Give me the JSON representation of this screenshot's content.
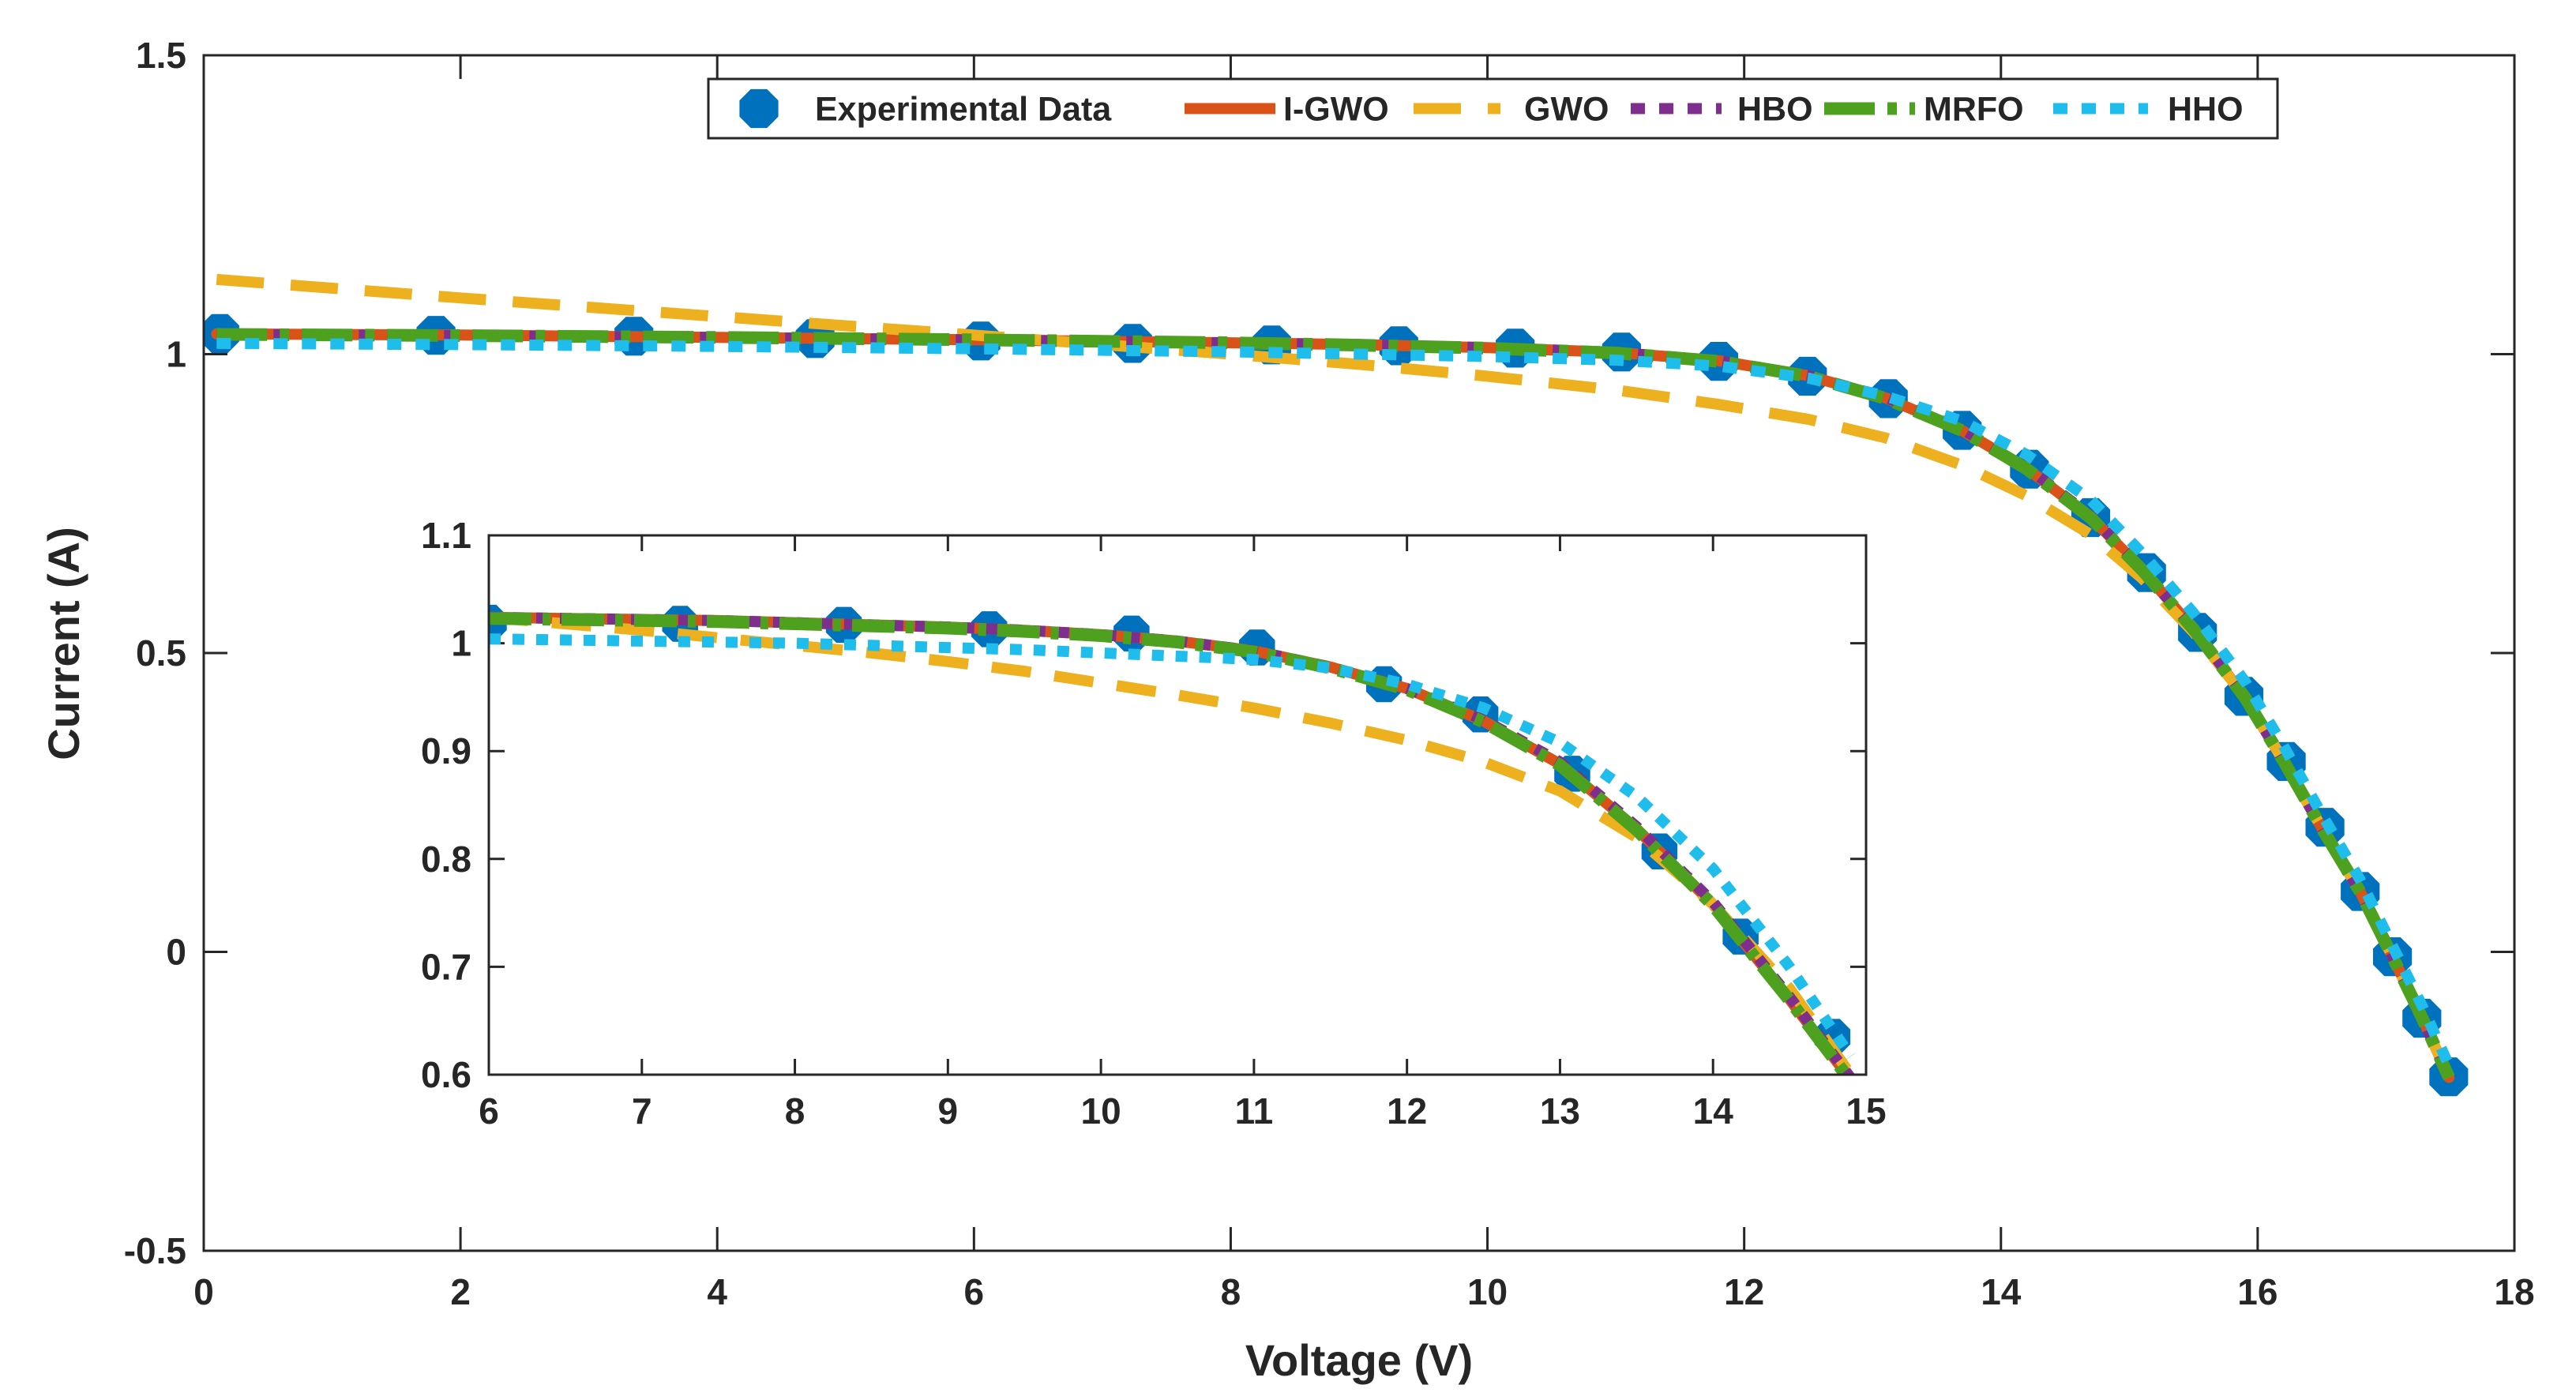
{
  "chart_data": {
    "type": "line",
    "xlabel": "Voltage (V)",
    "ylabel": "Current (A)",
    "xlim": [
      0,
      18
    ],
    "ylim": [
      -0.5,
      1.5
    ],
    "xticks": [
      0,
      2,
      4,
      6,
      8,
      10,
      12,
      14,
      16,
      18
    ],
    "yticks": [
      -0.5,
      0,
      0.5,
      1,
      1.5
    ],
    "xtick_labels": [
      "0",
      "2",
      "4",
      "6",
      "8",
      "10",
      "12",
      "14",
      "16",
      "18"
    ],
    "ytick_labels": [
      "-0.5",
      "0",
      "0.5",
      "1",
      "1.5"
    ],
    "grid": false,
    "legend_position": "top-right",
    "series": [
      {
        "name": "Experimental Data",
        "style": "marker",
        "color": "#0072BD",
        "x": [
          0.1248,
          1.8093,
          3.3511,
          4.7622,
          6.0538,
          7.2364,
          8.3189,
          9.3097,
          10.2163,
          11.0449,
          11.8018,
          12.4929,
          13.1231,
          13.6983,
          14.2221,
          14.6995,
          15.1346,
          15.5311,
          15.8929,
          16.2229,
          16.5241,
          16.7987,
          17.0499,
          17.2793,
          17.4885
        ],
        "y": [
          1.0345,
          1.0315,
          1.03,
          1.026,
          1.022,
          1.018,
          1.0155,
          1.014,
          1.01,
          1.0035,
          0.988,
          0.963,
          0.9255,
          0.8725,
          0.8075,
          0.7265,
          0.6345,
          0.5345,
          0.4275,
          0.3185,
          0.2085,
          0.101,
          -0.008,
          -0.111,
          -0.209
        ]
      },
      {
        "name": "I-GWO",
        "style": "solid",
        "color": "#D95319",
        "x": [
          0.1,
          2,
          4,
          6,
          8,
          9,
          10,
          11,
          11.8,
          12.5,
          13.1,
          13.7,
          14.2,
          14.7,
          15.1,
          15.5,
          15.9,
          16.2,
          16.5,
          16.8,
          17.05,
          17.28,
          17.49
        ],
        "y": [
          1.034,
          1.032,
          1.028,
          1.024,
          1.019,
          1.016,
          1.011,
          1.003,
          0.989,
          0.964,
          0.927,
          0.872,
          0.809,
          0.727,
          0.64,
          0.54,
          0.426,
          0.32,
          0.207,
          0.1,
          -0.008,
          -0.11,
          -0.21
        ]
      },
      {
        "name": "GWO",
        "style": "dashed",
        "color": "#EDB120",
        "x": [
          0.1,
          2,
          4,
          6,
          8,
          9,
          10,
          11,
          11.8,
          12.5,
          13.1,
          13.7,
          14.2,
          14.7,
          15.1,
          15.5,
          15.9,
          16.2,
          16.5,
          16.8,
          17.05,
          17.28,
          17.49
        ],
        "y": [
          1.125,
          1.094,
          1.063,
          1.032,
          1.0,
          0.983,
          0.963,
          0.94,
          0.916,
          0.891,
          0.86,
          0.814,
          0.763,
          0.698,
          0.625,
          0.535,
          0.427,
          0.32,
          0.207,
          0.1,
          -0.008,
          -0.11,
          -0.21
        ]
      },
      {
        "name": "HBO",
        "style": "dotted",
        "color": "#7E2F8E",
        "x": [
          0.1,
          2,
          4,
          6,
          8,
          9,
          10,
          11,
          11.8,
          12.5,
          13.1,
          13.7,
          14.2,
          14.7,
          15.1,
          15.5,
          15.9,
          16.2,
          16.5,
          16.8,
          17.05,
          17.28,
          17.49
        ],
        "y": [
          1.033,
          1.031,
          1.028,
          1.024,
          1.019,
          1.016,
          1.011,
          1.003,
          0.989,
          0.964,
          0.928,
          0.874,
          0.811,
          0.729,
          0.641,
          0.541,
          0.427,
          0.32,
          0.207,
          0.1,
          -0.008,
          -0.11,
          -0.21
        ]
      },
      {
        "name": "MRFO",
        "style": "dash-dot",
        "color": "#4DA11F",
        "x": [
          0.1,
          2,
          4,
          6,
          8,
          9,
          10,
          11,
          11.8,
          12.5,
          13.1,
          13.7,
          14.2,
          14.7,
          15.1,
          15.5,
          15.9,
          16.2,
          16.5,
          16.8,
          17.05,
          17.28,
          17.49
        ],
        "y": [
          1.033,
          1.031,
          1.028,
          1.024,
          1.019,
          1.015,
          1.01,
          1.002,
          0.988,
          0.963,
          0.926,
          0.872,
          0.808,
          0.726,
          0.639,
          0.54,
          0.426,
          0.32,
          0.207,
          0.1,
          -0.008,
          -0.11,
          -0.21
        ]
      },
      {
        "name": "HHO",
        "style": "dotted",
        "color": "#1EBDEB",
        "x": [
          0.1,
          2,
          4,
          6,
          8,
          9,
          10,
          11,
          11.8,
          12.5,
          13.1,
          13.7,
          14.2,
          14.7,
          15.1,
          15.5,
          15.9,
          16.2,
          16.5,
          16.8,
          17.05,
          17.28,
          17.49
        ],
        "y": [
          1.018,
          1.016,
          1.013,
          1.009,
          1.004,
          1.0,
          0.996,
          0.99,
          0.98,
          0.96,
          0.93,
          0.888,
          0.832,
          0.756,
          0.667,
          0.567,
          0.453,
          0.345,
          0.23,
          0.12,
          0.01,
          -0.09,
          -0.19
        ]
      }
    ],
    "inset": {
      "xlim": [
        6,
        15
      ],
      "ylim": [
        0.6,
        1.1
      ],
      "xticks": [
        6,
        7,
        8,
        9,
        10,
        11,
        12,
        13,
        14,
        15
      ],
      "yticks": [
        0.6,
        0.7,
        0.8,
        0.9,
        1,
        1.1
      ],
      "xtick_labels": [
        "6",
        "7",
        "8",
        "9",
        "10",
        "11",
        "12",
        "13",
        "14",
        "15"
      ],
      "ytick_labels": [
        "0.6",
        "0.7",
        "0.8",
        "0.9",
        "1",
        "1.1"
      ],
      "series": [
        {
          "name": "Experimental Data",
          "style": "marker",
          "color": "#0072BD",
          "x": [
            6.0,
            7.25,
            8.32,
            9.27,
            10.2,
            11.02,
            11.85,
            12.48,
            13.08,
            13.65,
            14.18,
            14.78
          ],
          "y": [
            1.019,
            1.018,
            1.017,
            1.013,
            1.009,
            0.996,
            0.962,
            0.934,
            0.879,
            0.807,
            0.728,
            0.635
          ]
        },
        {
          "name": "I-GWO",
          "style": "solid",
          "color": "#D95319",
          "x": [
            6.0,
            6.5,
            7.0,
            7.5,
            8.0,
            8.5,
            9.0,
            9.5,
            10.0,
            10.5,
            11.0,
            11.5,
            12.0,
            12.5,
            13.0,
            13.5,
            14.0,
            14.5,
            14.9
          ],
          "y": [
            1.024,
            1.023,
            1.022,
            1.021,
            1.019,
            1.017,
            1.015,
            1.012,
            1.008,
            1.002,
            0.993,
            0.978,
            0.958,
            0.928,
            0.888,
            0.828,
            0.758,
            0.67,
            0.595
          ]
        },
        {
          "name": "GWO",
          "style": "dashed",
          "color": "#EDB120",
          "x": [
            6.0,
            6.5,
            7.0,
            7.5,
            8.0,
            8.5,
            9.0,
            9.5,
            10.0,
            10.5,
            11.0,
            11.5,
            12.0,
            12.5,
            13.0,
            13.5,
            14.0,
            14.5,
            14.9
          ],
          "y": [
            1.024,
            1.018,
            1.012,
            1.005,
            0.998,
            0.991,
            0.983,
            0.974,
            0.963,
            0.952,
            0.94,
            0.926,
            0.91,
            0.89,
            0.863,
            0.82,
            0.758,
            0.68,
            0.6
          ]
        },
        {
          "name": "HBO",
          "style": "dotted",
          "color": "#7E2F8E",
          "x": [
            6.0,
            6.5,
            7.0,
            7.5,
            8.0,
            8.5,
            9.0,
            9.5,
            10.0,
            10.5,
            11.0,
            11.5,
            12.0,
            12.5,
            13.0,
            13.5,
            14.0,
            14.5,
            14.9
          ],
          "y": [
            1.024,
            1.023,
            1.022,
            1.021,
            1.019,
            1.017,
            1.015,
            1.012,
            1.008,
            1.002,
            0.993,
            0.978,
            0.958,
            0.929,
            0.89,
            0.83,
            0.76,
            0.672,
            0.597
          ]
        },
        {
          "name": "MRFO",
          "style": "dash-dot",
          "color": "#4DA11F",
          "x": [
            6.0,
            6.5,
            7.0,
            7.5,
            8.0,
            8.5,
            9.0,
            9.5,
            10.0,
            10.5,
            11.0,
            11.5,
            12.0,
            12.5,
            13.0,
            13.5,
            14.0,
            14.5,
            14.9
          ],
          "y": [
            1.023,
            1.022,
            1.021,
            1.02,
            1.018,
            1.016,
            1.014,
            1.011,
            1.007,
            1.001,
            0.992,
            0.977,
            0.957,
            0.927,
            0.887,
            0.827,
            0.757,
            0.669,
            0.594
          ]
        },
        {
          "name": "HHO",
          "style": "dotted",
          "color": "#1EBDEB",
          "x": [
            6.0,
            6.5,
            7.0,
            7.5,
            8.0,
            8.5,
            9.0,
            9.5,
            10.0,
            10.5,
            11.0,
            11.5,
            12.0,
            12.5,
            13.0,
            13.5,
            14.0,
            14.5,
            14.9
          ],
          "y": [
            1.004,
            1.003,
            1.002,
            1.001,
            1.0,
            0.998,
            0.996,
            0.994,
            0.991,
            0.988,
            0.985,
            0.977,
            0.962,
            0.94,
            0.908,
            0.858,
            0.791,
            0.7,
            0.617
          ]
        }
      ]
    }
  }
}
